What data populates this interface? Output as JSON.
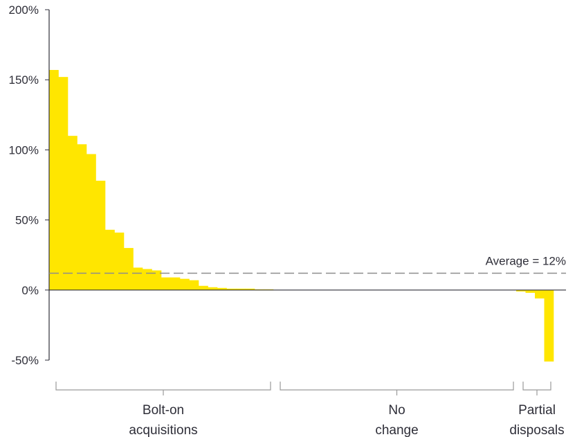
{
  "chart_data": {
    "type": "bar",
    "title": "",
    "xlabel": "",
    "ylabel": "",
    "ylim": [
      -50,
      200
    ],
    "yticks": [
      -50,
      0,
      50,
      100,
      150,
      200
    ],
    "ytick_labels": [
      "-50%",
      "0%",
      "50%",
      "100%",
      "150%",
      "200%"
    ],
    "grid": false,
    "legend": "none",
    "bar_color": "#ffe600",
    "values": [
      157,
      152,
      110,
      104,
      97,
      78,
      43,
      41,
      30,
      16,
      15,
      14,
      9,
      9,
      8,
      7,
      3,
      2,
      1.5,
      1,
      1,
      1,
      0.5,
      0.5,
      0,
      0,
      0,
      0,
      0,
      0,
      0,
      0,
      0,
      0,
      0,
      0,
      0,
      0,
      0,
      0,
      0,
      0,
      0,
      0,
      0,
      0,
      0,
      0,
      0,
      0,
      -1,
      -2,
      -6,
      -51
    ],
    "reference_line": {
      "value": 12,
      "label": "Average = 12%",
      "style": "dashed"
    },
    "groups": [
      {
        "label_lines": [
          "Bolt-on",
          "acquisitions"
        ],
        "start": 0,
        "end": 24
      },
      {
        "label_lines": [
          "No",
          "change"
        ],
        "start": 24,
        "end": 50
      },
      {
        "label_lines": [
          "Partial",
          "disposals"
        ],
        "start": 50,
        "end": 54
      }
    ]
  }
}
